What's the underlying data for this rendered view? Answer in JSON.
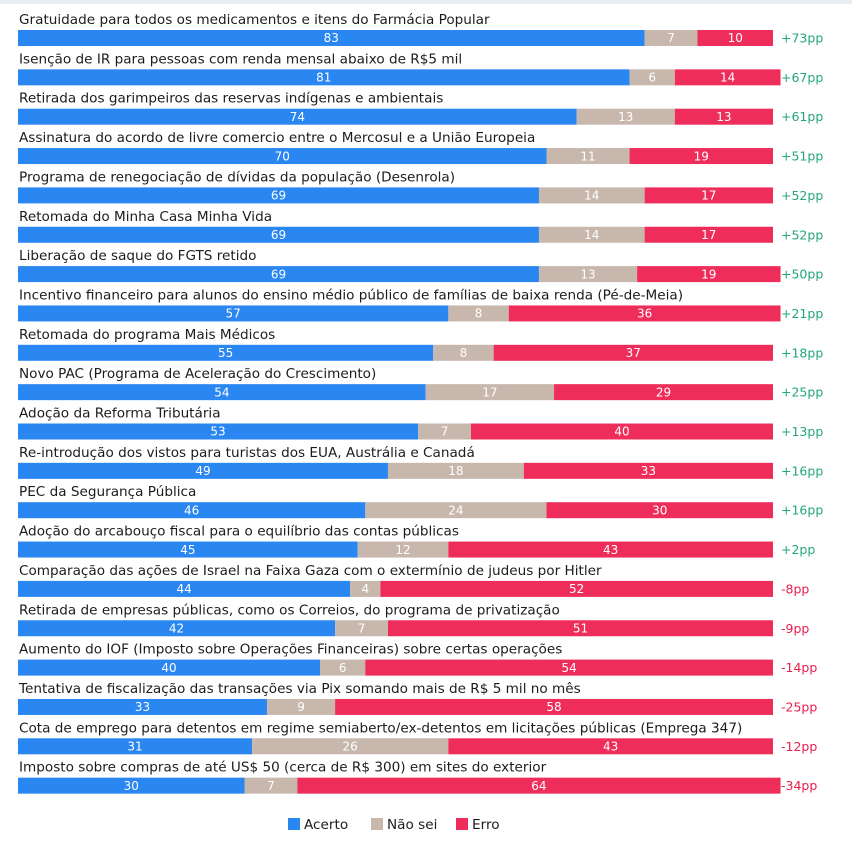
{
  "colors": {
    "acerto": "#2a86f0",
    "nao_sei": "#c8b7ad",
    "erro": "#ef2d5b",
    "positive": "#23a777",
    "negative": "#e8204b"
  },
  "legend": [
    {
      "key": "acerto",
      "label": "Acerto",
      "color": "#2a86f0"
    },
    {
      "key": "nao_sei",
      "label": "Não sei",
      "color": "#c8b7ad"
    },
    {
      "key": "erro",
      "label": "Erro",
      "color": "#ef2d5b"
    }
  ],
  "chart_data": {
    "type": "bar",
    "orientation": "horizontal",
    "stacked": true,
    "percent_scale": [
      0,
      100
    ],
    "legend_position": "bottom-center",
    "categories": [
      "Gratuidade para todos os medicamentos e itens do Farmácia Popular",
      "Isenção de IR para pessoas com renda mensal abaixo de R$5 mil",
      "Retirada dos garimpeiros das reservas indígenas e ambientais",
      "Assinatura do acordo de livre comercio entre o Mercosul e a União Europeia",
      "Programa de renegociação de dívidas da população (Desenrola)",
      "Retomada do Minha Casa Minha Vida",
      "Liberação de saque do FGTS retido",
      "Incentivo financeiro para alunos do ensino médio público de famílias de baixa renda (Pé-de-Meia)",
      "Retomada do programa Mais Médicos",
      "Novo PAC (Programa de Aceleração do Crescimento)",
      "Adoção da Reforma Tributária",
      "Re-introdução dos vistos para turistas dos EUA, Austrália e Canadá",
      "PEC da Segurança Pública",
      "Adoção do arcabouço fiscal para o equilíbrio das contas públicas",
      "Comparação das ações de Israel na Faixa Gaza com o extermínio de judeus por Hitler",
      "Retirada de empresas públicas, como os Correios, do programa de privatização",
      "Aumento do IOF (Imposto sobre Operações Financeiras) sobre certas operações",
      "Tentativa de fiscalização das transações via Pix somando mais de R$ 5 mil no mês",
      "Cota de emprego para detentos em regime semiaberto/ex-detentos em licitações públicas (Emprega 347)",
      "Imposto sobre compras de até US$ 50 (cerca de R$ 300) em sites do exterior"
    ],
    "series": [
      {
        "name": "Acerto",
        "values": [
          83,
          81,
          74,
          70,
          69,
          69,
          69,
          57,
          55,
          54,
          53,
          49,
          46,
          45,
          44,
          42,
          40,
          33,
          31,
          30
        ]
      },
      {
        "name": "Não sei",
        "values": [
          7,
          6,
          13,
          11,
          14,
          14,
          13,
          8,
          8,
          17,
          7,
          18,
          24,
          12,
          4,
          7,
          6,
          9,
          26,
          7
        ]
      },
      {
        "name": "Erro",
        "values": [
          10,
          14,
          13,
          19,
          17,
          17,
          19,
          36,
          37,
          29,
          40,
          33,
          30,
          43,
          52,
          51,
          54,
          58,
          43,
          64
        ]
      }
    ],
    "differences": [
      "+73pp",
      "+67pp",
      "+61pp",
      "+51pp",
      "+52pp",
      "+52pp",
      "+50pp",
      "+21pp",
      "+18pp",
      "+25pp",
      "+13pp",
      "+16pp",
      "+16pp",
      "+2pp",
      "-8pp",
      "-9pp",
      "-14pp",
      "-25pp",
      "-12pp",
      "-34pp"
    ]
  }
}
